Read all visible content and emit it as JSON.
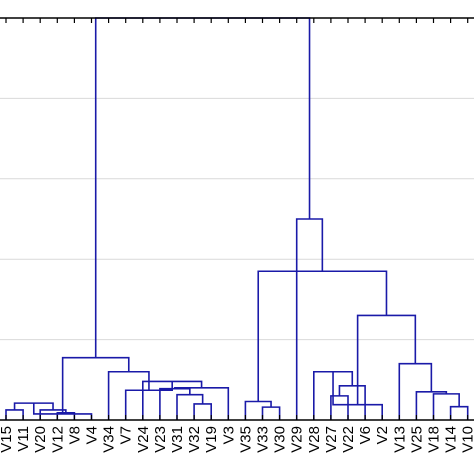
{
  "chart_data": {
    "type": "dendrogram",
    "title": "",
    "xlabel": "",
    "ylabel": "",
    "ylim": [
      0,
      100
    ],
    "grid": true,
    "link_color": "#1a1aa8",
    "leaves": [
      "V15",
      "V11",
      "V20",
      "V12",
      "V8",
      "V4",
      "V34",
      "V7",
      "V24",
      "V23",
      "V31",
      "V32",
      "V19",
      "V3",
      "V35",
      "V33",
      "V30",
      "V29",
      "V28",
      "V27",
      "V22",
      "V6",
      "V2",
      "V13",
      "V25",
      "V18",
      "V14",
      "V10"
    ],
    "merges": [
      {
        "left": "V15",
        "right": "V11",
        "height": 2.5
      },
      {
        "left": "V12",
        "right": "V8",
        "height": 1.8
      },
      {
        "left": "V20",
        "right": "V12+V8",
        "height": 2.5
      },
      {
        "left": "V15+V11",
        "right": "V20+V12+V8",
        "height": 4.2
      },
      {
        "left": "V4",
        "right": "V15..V8",
        "height": 1.5
      },
      {
        "left": "V32",
        "right": "V19",
        "height": 4.0
      },
      {
        "left": "V31",
        "right": "V32+V19",
        "height": 6.3
      },
      {
        "left": "V23",
        "right": "V31+V32+V19",
        "height": 7.8
      },
      {
        "left": "V3",
        "right": "V23..V19",
        "height": 8.0
      },
      {
        "left": "V24",
        "right": "V3+V23..V19",
        "height": 9.6
      },
      {
        "left": "V7",
        "right": "V24..V3",
        "height": 7.4
      },
      {
        "left": "V34",
        "right": "V7..V3",
        "height": 12.0
      },
      {
        "left": "V4-group",
        "right": "V34-group",
        "height": 15.5
      },
      {
        "left": "V33",
        "right": "V30",
        "height": 3.2
      },
      {
        "left": "V35",
        "right": "V33+V30",
        "height": 4.6
      },
      {
        "left": "V27",
        "right": "V22",
        "height": 6.0
      },
      {
        "left": "V27+V22",
        "right": "V6",
        "height": 8.5
      },
      {
        "left": "V28",
        "right": "V27+V22+V6",
        "height": 12.0
      },
      {
        "left": "V2",
        "right": "V28..V6",
        "height": 3.8
      },
      {
        "left": "V14",
        "right": "V10",
        "height": 3.3
      },
      {
        "left": "V18",
        "right": "V14+V10",
        "height": 6.5
      },
      {
        "left": "V25",
        "right": "V18+V14+V10",
        "height": 7.0
      },
      {
        "left": "V13",
        "right": "V25..V10",
        "height": 14.0
      },
      {
        "left": "V2-group",
        "right": "V13-group",
        "height": 26.0
      },
      {
        "left": "V35-group",
        "right": "V2+V13 groups",
        "height": 37.0
      },
      {
        "left": "V29",
        "right": "V35..V10",
        "height": 50.0
      },
      {
        "left": "V15..V3",
        "right": "V29..V10",
        "height": 100.0
      }
    ]
  }
}
